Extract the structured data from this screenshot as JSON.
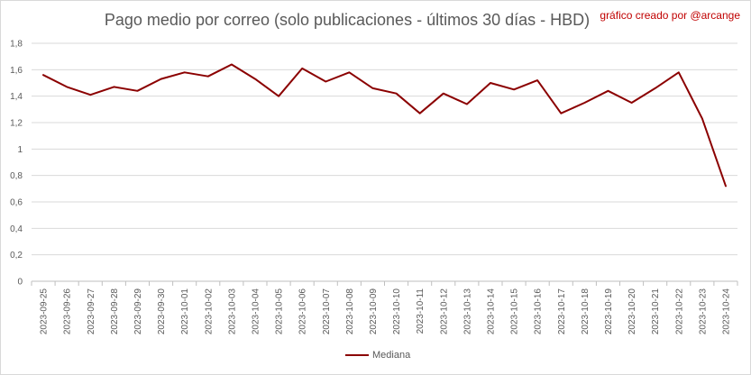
{
  "chart_data": {
    "type": "line",
    "title": "Pago medio por correo (solo publicaciones - últimos 30 días - HBD)",
    "credit": "gráfico creado por @arcange",
    "xlabel": "",
    "ylabel": "",
    "ylim": [
      0,
      1.8
    ],
    "y_ticks": [
      "0",
      "0,2",
      "0,4",
      "0,6",
      "0,8",
      "1",
      "1,2",
      "1,4",
      "1,6",
      "1,8"
    ],
    "grid": true,
    "legend_position": "bottom",
    "categories": [
      "2023-09-25",
      "2023-09-26",
      "2023-09-27",
      "2023-09-28",
      "2023-09-29",
      "2023-09-30",
      "2023-10-01",
      "2023-10-02",
      "2023-10-03",
      "2023-10-04",
      "2023-10-05",
      "2023-10-06",
      "2023-10-07",
      "2023-10-08",
      "2023-10-09",
      "2023-10-10",
      "2023-10-11",
      "2023-10-12",
      "2023-10-13",
      "2023-10-14",
      "2023-10-15",
      "2023-10-16",
      "2023-10-17",
      "2023-10-18",
      "2023-10-19",
      "2023-10-20",
      "2023-10-21",
      "2023-10-22",
      "2023-10-23",
      "2023-10-24"
    ],
    "series": [
      {
        "name": "Mediana",
        "color": "#8b0000",
        "values": [
          1.56,
          1.47,
          1.41,
          1.47,
          1.44,
          1.53,
          1.58,
          1.55,
          1.64,
          1.53,
          1.4,
          1.61,
          1.51,
          1.58,
          1.46,
          1.42,
          1.27,
          1.42,
          1.34,
          1.5,
          1.45,
          1.52,
          1.27,
          1.35,
          1.44,
          1.35,
          1.46,
          1.58,
          1.23,
          0.72
        ]
      }
    ]
  }
}
